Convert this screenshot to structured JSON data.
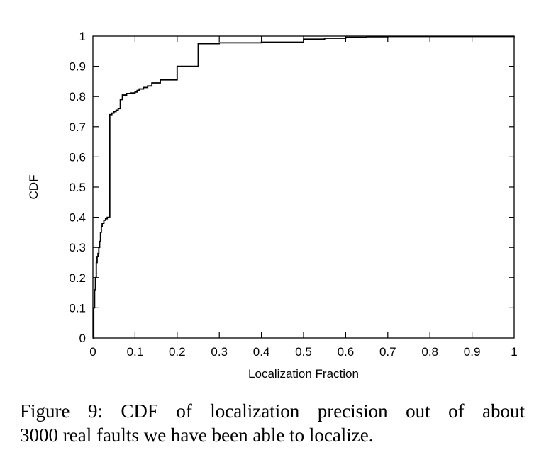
{
  "chart_data": {
    "type": "line",
    "title": "",
    "xlabel": "Localization Fraction",
    "ylabel": "CDF",
    "xlim": [
      0,
      1
    ],
    "ylim": [
      0,
      1
    ],
    "xticks": [
      "0",
      "0.1",
      "0.2",
      "0.3",
      "0.4",
      "0.5",
      "0.6",
      "0.7",
      "0.8",
      "0.9",
      "1"
    ],
    "yticks": [
      "0",
      "0.1",
      "0.2",
      "0.3",
      "0.4",
      "0.5",
      "0.6",
      "0.7",
      "0.8",
      "0.9",
      "1"
    ],
    "grid": false,
    "legend": "none",
    "step": true,
    "color": "#000000",
    "series": [
      {
        "x": [
          0,
          0.002,
          0.004,
          0.006,
          0.008,
          0.01,
          0.012,
          0.014,
          0.016,
          0.018,
          0.02,
          0.022,
          0.026,
          0.03,
          0.034,
          0.04,
          0.045,
          0.05,
          0.055,
          0.06,
          0.065,
          0.07,
          0.08,
          0.09,
          0.1,
          0.105,
          0.11,
          0.12,
          0.13,
          0.14,
          0.16,
          0.2,
          0.25,
          0.3,
          0.4,
          0.5,
          0.55,
          0.6,
          0.65,
          0.7,
          1.0
        ],
        "y": [
          0,
          0.1,
          0.16,
          0.2,
          0.25,
          0.27,
          0.28,
          0.3,
          0.32,
          0.35,
          0.37,
          0.38,
          0.39,
          0.395,
          0.4,
          0.74,
          0.745,
          0.75,
          0.755,
          0.76,
          0.79,
          0.805,
          0.81,
          0.812,
          0.815,
          0.82,
          0.825,
          0.83,
          0.835,
          0.845,
          0.855,
          0.9,
          0.975,
          0.978,
          0.98,
          0.99,
          0.993,
          0.996,
          0.998,
          0.999,
          1.0
        ]
      }
    ]
  },
  "caption": {
    "line1": "Figure 9:  CDF of localization precision out of about",
    "line2": "3000 real faults we have been able to localize."
  }
}
